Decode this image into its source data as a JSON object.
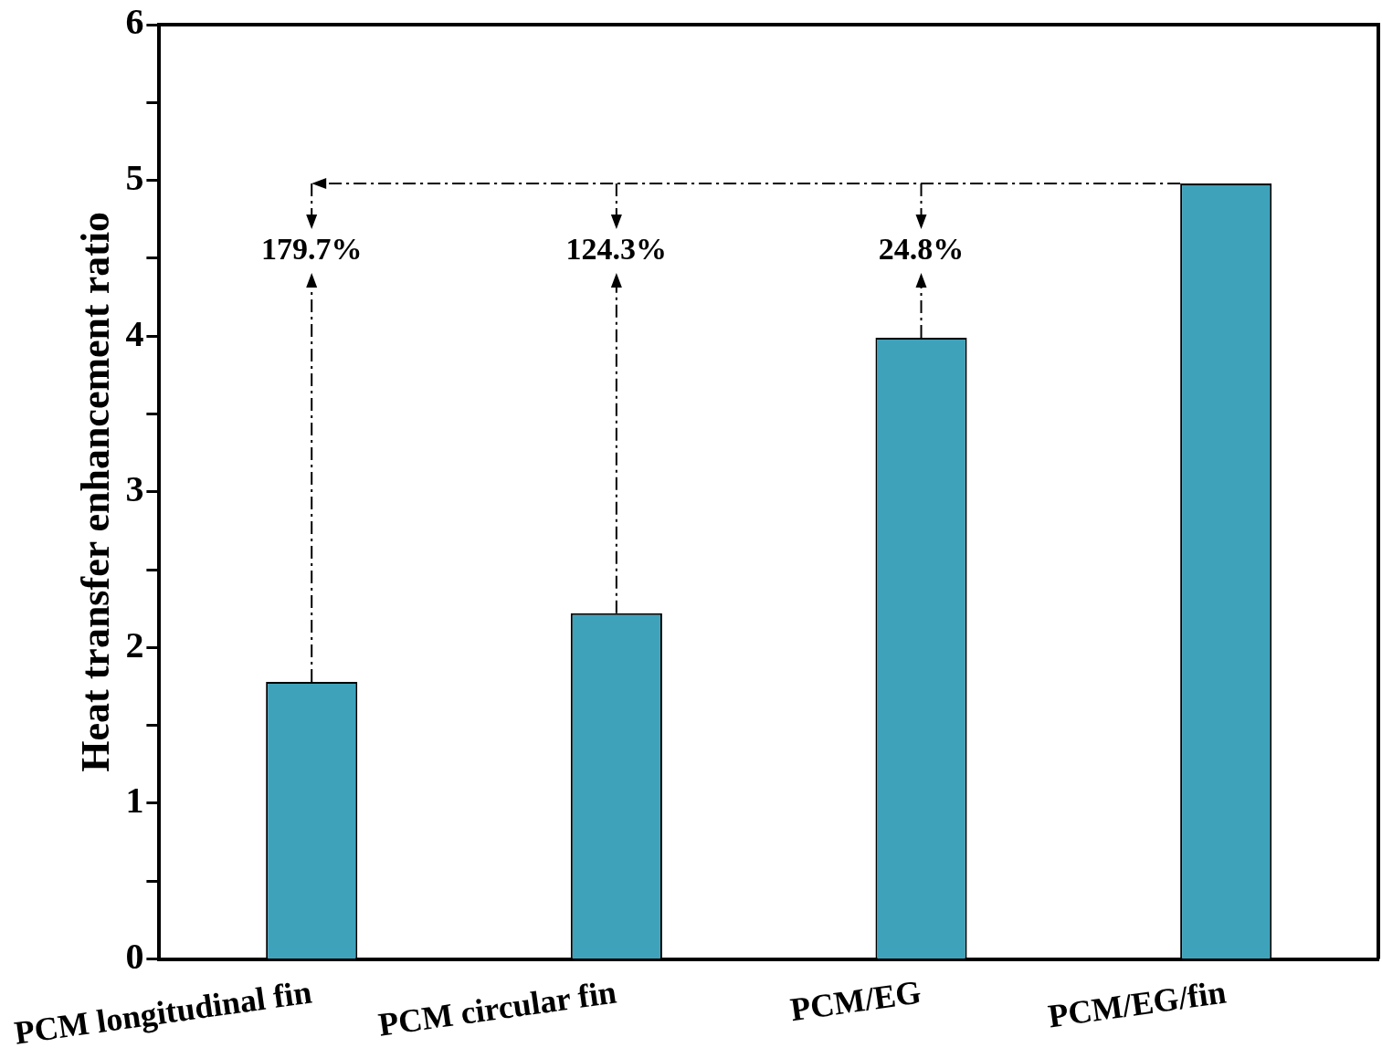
{
  "chart_data": {
    "type": "bar",
    "ylabel": "Heat transfer enhancement ratio",
    "categories": [
      "PCM longitudinal fin",
      "PCM circular fin",
      "PCM/EG",
      "PCM/EG/fin"
    ],
    "values": [
      1.78,
      2.22,
      3.99,
      4.98
    ],
    "color": "#3fa2bb",
    "ylim": [
      0,
      6
    ],
    "yticks": [
      0,
      {
        "value": 0.5,
        "label": null
      },
      1,
      {
        "value": 1.5,
        "label": null
      },
      2,
      {
        "value": 2.5,
        "label": null
      },
      3,
      {
        "value": 3.5,
        "label": null
      },
      4,
      {
        "value": 4.5,
        "label": null
      },
      5,
      {
        "value": 5.5,
        "label": null
      },
      6
    ],
    "legend": false,
    "annotations": [
      "179.7%",
      "124.3%",
      "24.8%"
    ]
  }
}
